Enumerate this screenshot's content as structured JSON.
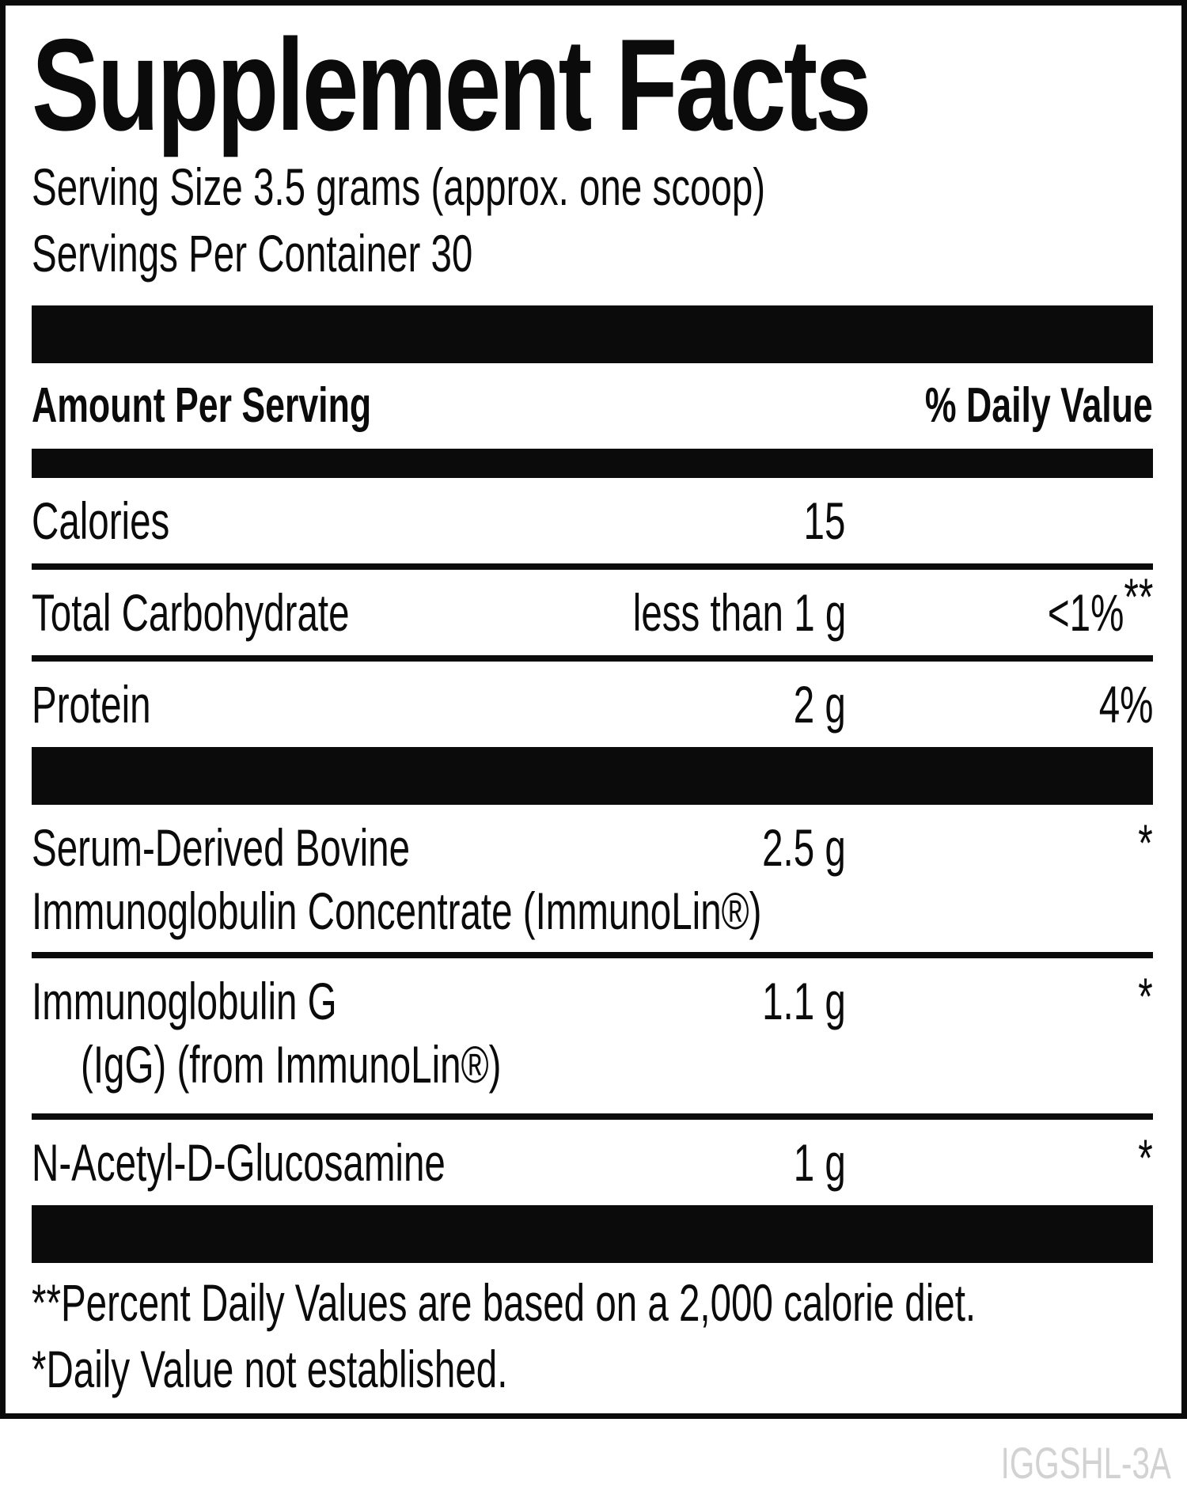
{
  "label": {
    "title": "Supplement Facts",
    "serving_size": "Serving Size 3.5 grams (approx. one scoop)",
    "servings_per_container": "Servings Per Container 30",
    "header": {
      "amount": "Amount Per Serving",
      "daily_value": "% Daily Value"
    },
    "nutrients": [
      {
        "name": "Calories",
        "amount": "15",
        "dv": "",
        "dv_sup": ""
      },
      {
        "name": "Total Carbohydrate",
        "amount": "less than 1 g",
        "dv": "<1%",
        "dv_sup": "**"
      },
      {
        "name": "Protein",
        "amount": "2 g",
        "dv": "4%",
        "dv_sup": ""
      }
    ],
    "ingredients": [
      {
        "line1": "Serum-Derived Bovine",
        "line2": "Immunoglobulin Concentrate (ImmunoLin®)",
        "amount": "2.5 g",
        "dv_sup": "*"
      },
      {
        "line1": "Immunoglobulin G",
        "line2": "(IgG) (from ImmunoLin®)",
        "amount": "1.1 g",
        "dv_sup": "*"
      },
      {
        "line1": "N-Acetyl-D-Glucosamine",
        "line2": "",
        "amount": "1 g",
        "dv_sup": "*"
      }
    ],
    "footnotes": [
      "**Percent Daily Values are based on a 2,000 calorie diet.",
      "*Daily Value not established."
    ],
    "product_code": "IGGSHL-3A",
    "colors": {
      "ink": "#0b0b0b",
      "code_gray": "#d2d2d2",
      "background": "#ffffff"
    }
  }
}
